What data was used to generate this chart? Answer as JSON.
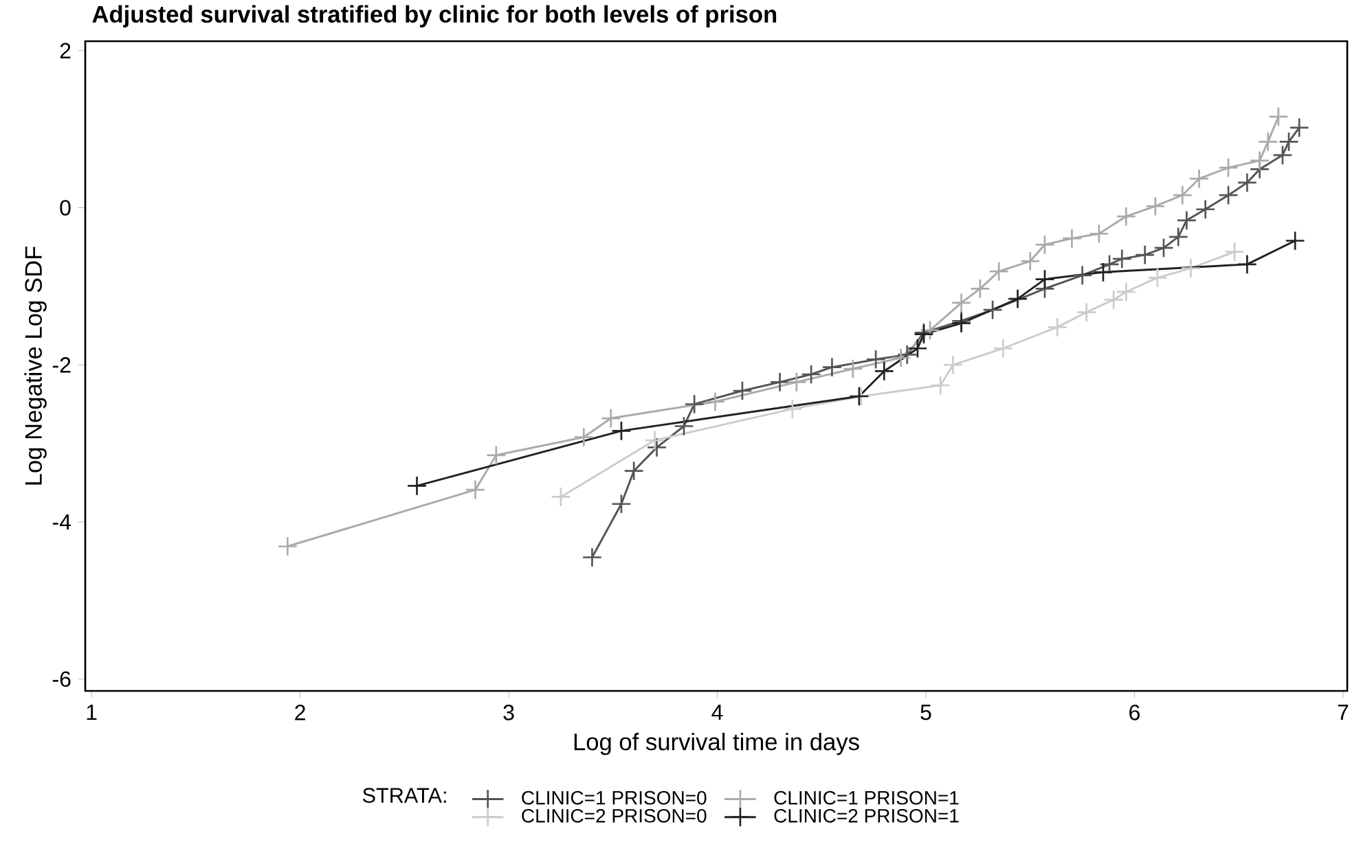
{
  "chart_data": {
    "type": "line",
    "title": "Adjusted survival stratified by clinic for both levels of prison",
    "xlabel": "Log of survival time in days",
    "ylabel": "Log Negative Log SDF",
    "legend_title": "STRATA:",
    "legend": "bottom",
    "marker": "cross",
    "line_style": "solid",
    "grid": false,
    "xlim": [
      0.97,
      7.02
    ],
    "ylim": [
      -6.15,
      2.12
    ],
    "xticks": [
      1,
      2,
      3,
      4,
      5,
      6,
      7
    ],
    "yticks": [
      -6,
      -4,
      -2,
      0,
      2
    ],
    "series": [
      {
        "name": "CLINIC=1 PRISON=0",
        "color": "#555555",
        "x": [
          3.4,
          3.54,
          3.6,
          3.71,
          3.84,
          3.89,
          4.12,
          4.3,
          4.45,
          4.55,
          4.76,
          4.91,
          4.99,
          5.17,
          5.32,
          5.57,
          5.75,
          5.88,
          5.94,
          6.05,
          6.14,
          6.21,
          6.25,
          6.34,
          6.45,
          6.54,
          6.6,
          6.71,
          6.74,
          6.79
        ],
        "values": [
          -4.45,
          -3.77,
          -3.35,
          -3.05,
          -2.78,
          -2.5,
          -2.33,
          -2.22,
          -2.12,
          -2.03,
          -1.93,
          -1.87,
          -1.59,
          -1.44,
          -1.3,
          -1.03,
          -0.86,
          -0.72,
          -0.65,
          -0.6,
          -0.51,
          -0.37,
          -0.16,
          -0.02,
          0.16,
          0.32,
          0.49,
          0.67,
          0.84,
          1.02
        ]
      },
      {
        "name": "CLINIC=1 PRISON=1",
        "color": "#aaaaaa",
        "x": [
          1.94,
          2.84,
          2.94,
          3.36,
          3.49,
          3.99,
          4.38,
          4.65,
          4.88,
          5.02,
          5.17,
          5.26,
          5.35,
          5.5,
          5.57,
          5.7,
          5.83,
          5.96,
          6.1,
          6.23,
          6.31,
          6.45,
          6.6,
          6.64,
          6.69
        ],
        "values": [
          -4.31,
          -3.59,
          -3.15,
          -2.92,
          -2.68,
          -2.47,
          -2.22,
          -2.05,
          -1.91,
          -1.56,
          -1.21,
          -1.03,
          -0.81,
          -0.68,
          -0.47,
          -0.39,
          -0.33,
          -0.11,
          0.02,
          0.16,
          0.37,
          0.51,
          0.6,
          0.84,
          1.16
        ]
      },
      {
        "name": "CLINIC=2 PRISON=0",
        "color": "#cccccc",
        "x": [
          3.25,
          3.7,
          4.36,
          4.69,
          5.07,
          5.13,
          5.37,
          5.63,
          5.77,
          5.9,
          5.96,
          6.11,
          6.27,
          6.48
        ],
        "values": [
          -3.68,
          -2.96,
          -2.56,
          -2.4,
          -2.26,
          -2.0,
          -1.79,
          -1.52,
          -1.33,
          -1.17,
          -1.07,
          -0.89,
          -0.77,
          -0.56
        ]
      },
      {
        "name": "CLINIC=2 PRISON=1",
        "color": "#222222",
        "x": [
          2.56,
          3.54,
          4.68,
          4.8,
          4.96,
          4.99,
          5.17,
          5.44,
          5.57,
          5.85,
          6.54,
          6.77
        ],
        "values": [
          -3.54,
          -2.84,
          -2.4,
          -2.08,
          -1.79,
          -1.61,
          -1.47,
          -1.16,
          -0.91,
          -0.82,
          -0.72,
          -0.42
        ]
      }
    ]
  }
}
